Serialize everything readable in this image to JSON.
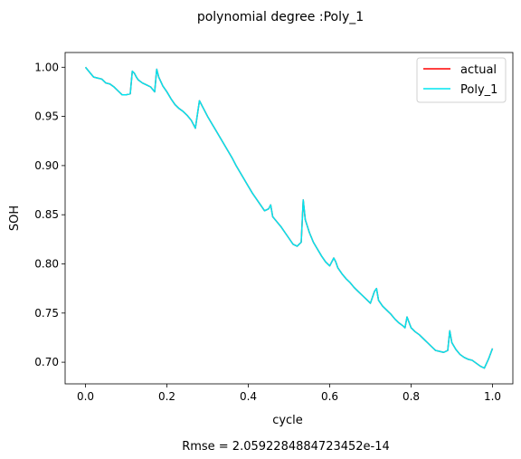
{
  "chart_data": {
    "type": "line",
    "title": "polynomial degree :Poly_1",
    "xlabel": "cycle",
    "ylabel": "SOH",
    "footer": "Rmse = 2.0592284884723452e-14",
    "xlim": [
      -0.05,
      1.05
    ],
    "ylim": [
      0.678,
      1.015
    ],
    "xticks": [
      {
        "v": 0.0,
        "label": "0.0"
      },
      {
        "v": 0.2,
        "label": "0.2"
      },
      {
        "v": 0.4,
        "label": "0.4"
      },
      {
        "v": 0.6,
        "label": "0.6"
      },
      {
        "v": 0.8,
        "label": "0.8"
      },
      {
        "v": 1.0,
        "label": "1.0"
      }
    ],
    "yticks": [
      {
        "v": 0.7,
        "label": "0.70"
      },
      {
        "v": 0.75,
        "label": "0.75"
      },
      {
        "v": 0.8,
        "label": "0.80"
      },
      {
        "v": 0.85,
        "label": "0.85"
      },
      {
        "v": 0.9,
        "label": "0.90"
      },
      {
        "v": 0.95,
        "label": "0.95"
      },
      {
        "v": 1.0,
        "label": "1.00"
      }
    ],
    "grid": false,
    "legend_position": "top-right",
    "x": [
      0.0,
      0.01,
      0.02,
      0.03,
      0.04,
      0.05,
      0.06,
      0.07,
      0.08,
      0.09,
      0.1,
      0.11,
      0.115,
      0.12,
      0.125,
      0.13,
      0.14,
      0.15,
      0.16,
      0.17,
      0.175,
      0.18,
      0.19,
      0.2,
      0.21,
      0.22,
      0.23,
      0.24,
      0.25,
      0.26,
      0.27,
      0.28,
      0.29,
      0.3,
      0.31,
      0.32,
      0.33,
      0.34,
      0.35,
      0.36,
      0.37,
      0.38,
      0.39,
      0.4,
      0.41,
      0.42,
      0.43,
      0.44,
      0.45,
      0.455,
      0.46,
      0.47,
      0.48,
      0.49,
      0.5,
      0.51,
      0.52,
      0.53,
      0.535,
      0.54,
      0.55,
      0.56,
      0.57,
      0.58,
      0.59,
      0.6,
      0.61,
      0.615,
      0.62,
      0.63,
      0.64,
      0.65,
      0.66,
      0.67,
      0.68,
      0.69,
      0.7,
      0.71,
      0.715,
      0.72,
      0.73,
      0.74,
      0.75,
      0.76,
      0.77,
      0.78,
      0.785,
      0.79,
      0.8,
      0.81,
      0.82,
      0.83,
      0.84,
      0.85,
      0.86,
      0.87,
      0.88,
      0.89,
      0.895,
      0.9,
      0.91,
      0.92,
      0.93,
      0.94,
      0.95,
      0.96,
      0.97,
      0.98,
      0.99,
      1.0
    ],
    "series": [
      {
        "name": "actual",
        "color": "#ff0000",
        "width": 1.5,
        "values": [
          1.0,
          0.995,
          0.99,
          0.989,
          0.988,
          0.984,
          0.983,
          0.98,
          0.976,
          0.972,
          0.972,
          0.973,
          0.996,
          0.994,
          0.99,
          0.987,
          0.984,
          0.982,
          0.98,
          0.975,
          0.998,
          0.99,
          0.981,
          0.975,
          0.968,
          0.962,
          0.958,
          0.955,
          0.951,
          0.946,
          0.938,
          0.966,
          0.958,
          0.95,
          0.943,
          0.936,
          0.929,
          0.922,
          0.915,
          0.908,
          0.9,
          0.893,
          0.886,
          0.879,
          0.872,
          0.866,
          0.86,
          0.854,
          0.856,
          0.86,
          0.848,
          0.843,
          0.838,
          0.832,
          0.826,
          0.82,
          0.818,
          0.822,
          0.865,
          0.845,
          0.832,
          0.822,
          0.815,
          0.808,
          0.802,
          0.798,
          0.806,
          0.802,
          0.796,
          0.79,
          0.785,
          0.781,
          0.776,
          0.772,
          0.768,
          0.764,
          0.76,
          0.772,
          0.775,
          0.763,
          0.757,
          0.753,
          0.749,
          0.744,
          0.74,
          0.737,
          0.735,
          0.746,
          0.735,
          0.731,
          0.728,
          0.724,
          0.72,
          0.716,
          0.712,
          0.711,
          0.71,
          0.712,
          0.732,
          0.72,
          0.713,
          0.708,
          0.705,
          0.703,
          0.702,
          0.699,
          0.696,
          0.694,
          0.703,
          0.714
        ]
      },
      {
        "name": "Poly_1",
        "color": "#00e6f0",
        "width": 1.5,
        "values": [
          1.0,
          0.995,
          0.99,
          0.989,
          0.988,
          0.984,
          0.983,
          0.98,
          0.976,
          0.972,
          0.972,
          0.973,
          0.996,
          0.994,
          0.99,
          0.987,
          0.984,
          0.982,
          0.98,
          0.975,
          0.998,
          0.99,
          0.981,
          0.975,
          0.968,
          0.962,
          0.958,
          0.955,
          0.951,
          0.946,
          0.938,
          0.966,
          0.958,
          0.95,
          0.943,
          0.936,
          0.929,
          0.922,
          0.915,
          0.908,
          0.9,
          0.893,
          0.886,
          0.879,
          0.872,
          0.866,
          0.86,
          0.854,
          0.856,
          0.86,
          0.848,
          0.843,
          0.838,
          0.832,
          0.826,
          0.82,
          0.818,
          0.822,
          0.865,
          0.845,
          0.832,
          0.822,
          0.815,
          0.808,
          0.802,
          0.798,
          0.806,
          0.802,
          0.796,
          0.79,
          0.785,
          0.781,
          0.776,
          0.772,
          0.768,
          0.764,
          0.76,
          0.772,
          0.775,
          0.763,
          0.757,
          0.753,
          0.749,
          0.744,
          0.74,
          0.737,
          0.735,
          0.746,
          0.735,
          0.731,
          0.728,
          0.724,
          0.72,
          0.716,
          0.712,
          0.711,
          0.71,
          0.712,
          0.732,
          0.72,
          0.713,
          0.708,
          0.705,
          0.703,
          0.702,
          0.699,
          0.696,
          0.694,
          0.703,
          0.714
        ]
      }
    ]
  }
}
